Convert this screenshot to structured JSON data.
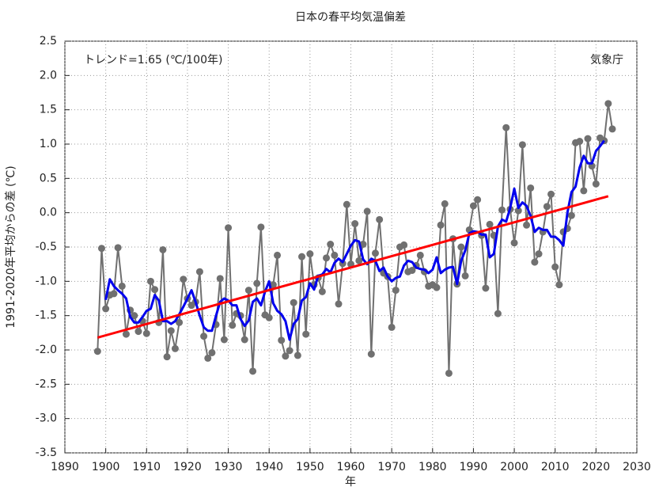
{
  "chart_data": {
    "type": "line",
    "title": "日本の春平均気温偏差",
    "ylabel": "1991-2020年平均からの差 (℃)",
    "xlabel": "年",
    "annotations": [
      "トレンド=1.65 (℃/100年)",
      "気象庁"
    ],
    "xlim": [
      1890,
      2030
    ],
    "xticks": [
      1890,
      1900,
      1910,
      1920,
      1930,
      1940,
      1950,
      1960,
      1970,
      1980,
      1990,
      2000,
      2010,
      2020,
      2030
    ],
    "ylim": [
      -3.5,
      2.5
    ],
    "yticks": [
      -3.5,
      {
        "value": -3,
        "label": "-3.0"
      },
      -2.5,
      {
        "value": -2,
        "label": "-2.0"
      },
      -1.5,
      {
        "value": -1,
        "label": "-1.0"
      },
      -0.5,
      {
        "value": 0,
        "label": "0.0"
      },
      0.5,
      {
        "value": 1,
        "label": "1.0"
      },
      1.5,
      {
        "value": 2,
        "label": "2.0"
      },
      2.5
    ],
    "grid": true,
    "series": [
      {
        "color": "#707070",
        "markers": true,
        "x": [
          1898,
          1899,
          1900,
          1901,
          1902,
          1903,
          1904,
          1905,
          1906,
          1907,
          1908,
          1909,
          1910,
          1911,
          1912,
          1913,
          1914,
          1915,
          1916,
          1917,
          1918,
          1919,
          1920,
          1921,
          1922,
          1923,
          1924,
          1925,
          1926,
          1927,
          1928,
          1929,
          1930,
          1931,
          1932,
          1933,
          1934,
          1935,
          1936,
          1937,
          1938,
          1939,
          1940,
          1941,
          1942,
          1943,
          1944,
          1945,
          1946,
          1947,
          1948,
          1949,
          1950,
          1951,
          1952,
          1953,
          1954,
          1955,
          1956,
          1957,
          1958,
          1959,
          1960,
          1961,
          1962,
          1963,
          1964,
          1965,
          1966,
          1967,
          1968,
          1969,
          1970,
          1971,
          1972,
          1973,
          1974,
          1975,
          1976,
          1977,
          1978,
          1979,
          1980,
          1981,
          1982,
          1983,
          1984,
          1985,
          1986,
          1987,
          1988,
          1989,
          1990,
          1991,
          1992,
          1993,
          1994,
          1995,
          1996,
          1997,
          1998,
          1999,
          2000,
          2001,
          2002,
          2003,
          2004,
          2005,
          2006,
          2007,
          2008,
          2009,
          2010,
          2011,
          2012,
          2013,
          2014,
          2015,
          2016,
          2017,
          2018,
          2019,
          2020,
          2021,
          2022,
          2023,
          2024
        ],
        "values": [
          -2.02,
          -0.52,
          -1.4,
          -1.2,
          -1.18,
          -0.51,
          -1.07,
          -1.77,
          -1.42,
          -1.5,
          -1.73,
          -1.58,
          -1.76,
          -1.0,
          -1.12,
          -1.6,
          -0.54,
          -2.1,
          -1.72,
          -1.98,
          -1.6,
          -0.97,
          -1.25,
          -1.35,
          -1.3,
          -0.86,
          -1.8,
          -2.12,
          -2.04,
          -1.63,
          -0.96,
          -1.85,
          -0.22,
          -1.64,
          -1.47,
          -1.5,
          -1.85,
          -1.13,
          -2.31,
          -1.03,
          -0.21,
          -1.49,
          -1.53,
          -1.05,
          -0.62,
          -1.86,
          -2.09,
          -2.01,
          -1.31,
          -2.08,
          -0.64,
          -1.77,
          -0.6,
          -1.05,
          -0.95,
          -1.15,
          -0.66,
          -0.46,
          -0.62,
          -1.33,
          -0.74,
          0.12,
          -0.75,
          -0.16,
          -0.7,
          -0.46,
          0.02,
          -2.06,
          -0.59,
          -0.1,
          -0.88,
          -0.93,
          -1.67,
          -1.13,
          -0.5,
          -0.47,
          -0.86,
          -0.84,
          -0.77,
          -0.62,
          -0.86,
          -1.07,
          -1.05,
          -1.09,
          -0.18,
          0.13,
          -2.34,
          -0.38,
          -1.04,
          -0.5,
          -0.92,
          -0.25,
          0.1,
          0.19,
          -0.33,
          -1.1,
          -0.17,
          -0.33,
          -1.47,
          0.04,
          1.24,
          0.05,
          -0.44,
          0.03,
          0.99,
          -0.18,
          0.36,
          -0.72,
          -0.6,
          -0.28,
          0.09,
          0.27,
          -0.79,
          -1.05,
          -0.28,
          -0.23,
          -0.04,
          1.02,
          1.04,
          0.32,
          1.08,
          0.68,
          0.42,
          1.09,
          1.05,
          1.59,
          1.22
        ]
      },
      {
        "color": "#0000ee",
        "markers": false,
        "x": [
          1900,
          1901,
          1902,
          1903,
          1904,
          1905,
          1906,
          1907,
          1908,
          1909,
          1910,
          1911,
          1912,
          1913,
          1914,
          1915,
          1916,
          1917,
          1918,
          1919,
          1920,
          1921,
          1922,
          1923,
          1924,
          1925,
          1926,
          1927,
          1928,
          1929,
          1930,
          1931,
          1932,
          1933,
          1934,
          1935,
          1936,
          1937,
          1938,
          1939,
          1940,
          1941,
          1942,
          1943,
          1944,
          1945,
          1946,
          1947,
          1948,
          1949,
          1950,
          1951,
          1952,
          1953,
          1954,
          1955,
          1956,
          1957,
          1958,
          1959,
          1960,
          1961,
          1962,
          1963,
          1964,
          1965,
          1966,
          1967,
          1968,
          1969,
          1970,
          1971,
          1972,
          1973,
          1974,
          1975,
          1976,
          1977,
          1978,
          1979,
          1980,
          1981,
          1982,
          1983,
          1984,
          1985,
          1986,
          1987,
          1988,
          1989,
          1990,
          1991,
          1992,
          1993,
          1994,
          1995,
          1996,
          1997,
          1998,
          1999,
          2000,
          2001,
          2002,
          2003,
          2004,
          2005,
          2006,
          2007,
          2008,
          2009,
          2010,
          2011,
          2012,
          2013,
          2014,
          2015,
          2016,
          2017,
          2018,
          2019,
          2020,
          2021,
          2022
        ],
        "values": [
          -1.27,
          -0.97,
          -1.07,
          -1.13,
          -1.18,
          -1.25,
          -1.52,
          -1.6,
          -1.6,
          -1.52,
          -1.43,
          -1.4,
          -1.2,
          -1.28,
          -1.58,
          -1.58,
          -1.62,
          -1.58,
          -1.48,
          -1.37,
          -1.25,
          -1.13,
          -1.3,
          -1.5,
          -1.67,
          -1.72,
          -1.72,
          -1.5,
          -1.3,
          -1.25,
          -1.28,
          -1.35,
          -1.35,
          -1.55,
          -1.65,
          -1.57,
          -1.3,
          -1.25,
          -1.35,
          -1.15,
          -1.0,
          -1.32,
          -1.43,
          -1.48,
          -1.58,
          -1.85,
          -1.62,
          -1.55,
          -1.28,
          -1.23,
          -1.03,
          -1.12,
          -0.92,
          -0.9,
          -0.82,
          -0.87,
          -0.73,
          -0.67,
          -0.72,
          -0.6,
          -0.48,
          -0.4,
          -0.42,
          -0.68,
          -0.75,
          -0.67,
          -0.7,
          -0.85,
          -0.8,
          -0.93,
          -1.0,
          -0.95,
          -0.93,
          -0.77,
          -0.7,
          -0.72,
          -0.8,
          -0.82,
          -0.83,
          -0.88,
          -0.83,
          -0.65,
          -0.88,
          -0.83,
          -0.8,
          -0.79,
          -1.04,
          -0.7,
          -0.55,
          -0.3,
          -0.27,
          -0.28,
          -0.32,
          -0.32,
          -0.65,
          -0.6,
          -0.2,
          -0.1,
          -0.13,
          0.07,
          0.35,
          0.07,
          0.15,
          0.1,
          -0.05,
          -0.28,
          -0.22,
          -0.25,
          -0.25,
          -0.35,
          -0.35,
          -0.4,
          -0.48,
          0.0,
          0.3,
          0.38,
          0.66,
          0.83,
          0.72,
          0.72,
          0.9,
          0.97,
          1.05
        ]
      },
      {
        "color": "#ff0000",
        "markers": false,
        "x": [
          1898,
          2023
        ],
        "values": [
          -1.82,
          0.24
        ]
      }
    ]
  }
}
